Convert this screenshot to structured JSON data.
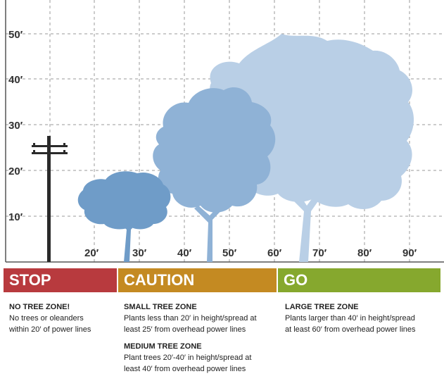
{
  "y_axis": {
    "ticks": [
      "10′",
      "20′",
      "30′",
      "40′",
      "50′"
    ]
  },
  "x_axis": {
    "ticks": [
      "20′",
      "30′",
      "40′",
      "50′",
      "60′",
      "70′",
      "80′",
      "90′"
    ]
  },
  "colors": {
    "stop": "#b83a3e",
    "caution": "#c48a22",
    "go": "#86a82e",
    "tree_small": "#6f9cc8",
    "tree_medium": "#8fb2d6",
    "tree_large": "#b9cfe6",
    "pole": "#2a2a2a"
  },
  "zones": {
    "stop": {
      "label": "STOP",
      "title": "NO TREE ZONE!",
      "text": [
        "No trees or oleanders",
        "within 20′ of power lines"
      ]
    },
    "caution": {
      "label": "CAUTION",
      "small_title": "SMALL TREE ZONE",
      "small_text": [
        "Plants less than 20′ in height/spread at",
        "least 25′ from overhead power lines"
      ],
      "medium_title": "MEDIUM TREE ZONE",
      "medium_text": [
        "Plant trees 20′-40′ in height/spread at",
        "least 40′ from overhead power lines"
      ]
    },
    "go": {
      "label": "GO",
      "title": "LARGE TREE ZONE",
      "text": [
        "Plants larger than 40′ in height/spread",
        "at least 60′ from overhead power lines"
      ]
    }
  }
}
